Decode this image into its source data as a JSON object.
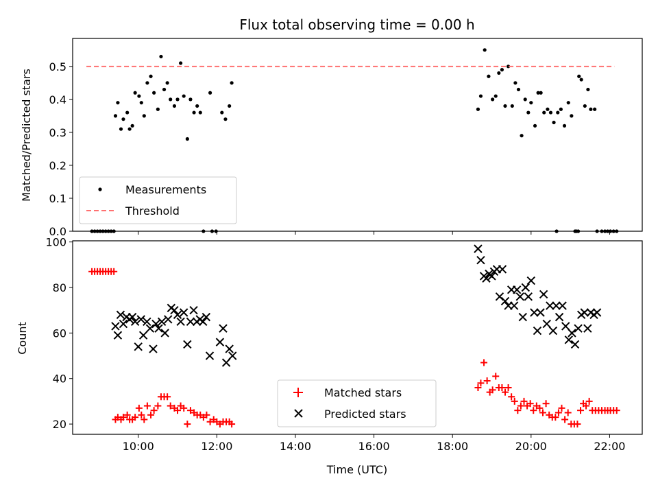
{
  "chart_data": [
    {
      "type": "scatter",
      "title": "Flux total observing time = 0.00 h",
      "ylabel": "Matched/Predicted stars",
      "xlabel": "",
      "xlim": [
        8.33,
        22.83
      ],
      "ylim": [
        0,
        0.585
      ],
      "yticks": [
        0,
        0.1,
        0.2,
        0.3,
        0.4,
        0.5
      ],
      "ytick_labels": [
        "0.0",
        "0.1",
        "0.2",
        "0.3",
        "0.4",
        "0.5"
      ],
      "xticks": [
        10,
        12,
        14,
        16,
        18,
        20,
        22
      ],
      "show_xtick_labels": false,
      "legend": {
        "position": "lower-left",
        "entries": [
          "Measurements",
          "Threshold"
        ]
      },
      "series": [
        {
          "name": "Measurements",
          "marker": "dot",
          "color": "#000000",
          "x": [
            8.82,
            8.89,
            8.96,
            9.03,
            9.1,
            9.17,
            9.24,
            9.31,
            9.38,
            9.42,
            9.48,
            9.56,
            9.62,
            9.72,
            9.78,
            9.85,
            9.92,
            10.02,
            10.08,
            10.15,
            10.23,
            10.32,
            10.4,
            10.5,
            10.58,
            10.66,
            10.74,
            10.82,
            10.92,
            11.0,
            11.08,
            11.16,
            11.25,
            11.33,
            11.42,
            11.5,
            11.58,
            11.66,
            11.83,
            12.32,
            12.38,
            12.13,
            12.22,
            11.88,
            11.98,
            18.65,
            18.72,
            18.82,
            18.92,
            19.02,
            19.1,
            19.18,
            19.26,
            19.34,
            19.42,
            19.52,
            19.6,
            19.68,
            19.76,
            19.85,
            19.93,
            20.0,
            20.1,
            20.18,
            20.25,
            20.33,
            20.42,
            20.5,
            20.58,
            20.68,
            20.76,
            20.85,
            20.95,
            21.03,
            21.12,
            21.22,
            21.28,
            21.37,
            21.45,
            21.52,
            21.62,
            21.68,
            21.8,
            21.88,
            21.95,
            22.02,
            22.1,
            22.18,
            20.65,
            21.15,
            21.2
          ],
          "y": [
            0,
            0,
            0,
            0,
            0,
            0,
            0,
            0,
            0,
            0.35,
            0.39,
            0.31,
            0.34,
            0.36,
            0.31,
            0.32,
            0.42,
            0.41,
            0.39,
            0.35,
            0.45,
            0.47,
            0.42,
            0.37,
            0.53,
            0.43,
            0.45,
            0.4,
            0.38,
            0.4,
            0.51,
            0.41,
            0.28,
            0.4,
            0.36,
            0.38,
            0.36,
            0,
            0.42,
            0.38,
            0.45,
            0.36,
            0.34,
            0,
            0,
            0.37,
            0.41,
            0.55,
            0.47,
            0.4,
            0.41,
            0.48,
            0.49,
            0.38,
            0.5,
            0.38,
            0.45,
            0.43,
            0.29,
            0.4,
            0.36,
            0.39,
            0.32,
            0.42,
            0.42,
            0.36,
            0.37,
            0.36,
            0.33,
            0.36,
            0.37,
            0.32,
            0.39,
            0.35,
            0,
            0.47,
            0.46,
            0.38,
            0.43,
            0.37,
            0.37,
            0,
            0,
            0,
            0,
            0,
            0,
            0,
            0,
            0,
            0
          ]
        },
        {
          "name": "Threshold",
          "style": "dashed",
          "color": "#ff7070",
          "x": [
            8.68,
            22.12
          ],
          "y": [
            0.5,
            0.5
          ]
        }
      ]
    },
    {
      "type": "scatter",
      "title": "",
      "ylabel": "Count",
      "xlabel": "Time (UTC)",
      "xlim": [
        8.33,
        22.83
      ],
      "ylim": [
        15.5,
        100.5
      ],
      "yticks": [
        20,
        40,
        60,
        80,
        100
      ],
      "ytick_labels": [
        "20",
        "40",
        "60",
        "80",
        "100"
      ],
      "xticks": [
        10,
        12,
        14,
        16,
        18,
        20,
        22
      ],
      "xtick_labels": [
        "10:00",
        "12:00",
        "14:00",
        "16:00",
        "18:00",
        "20:00",
        "22:00"
      ],
      "show_xtick_labels": true,
      "legend": {
        "position": "lower-center",
        "entries": [
          "Matched stars",
          "Predicted stars"
        ]
      },
      "series": [
        {
          "name": "Matched stars",
          "marker": "plus",
          "color": "#ff0000",
          "x": [
            8.82,
            8.89,
            8.96,
            9.03,
            9.1,
            9.17,
            9.24,
            9.31,
            9.38,
            9.42,
            9.48,
            9.56,
            9.62,
            9.72,
            9.78,
            9.85,
            9.92,
            10.02,
            10.08,
            10.15,
            10.23,
            10.32,
            10.4,
            10.5,
            10.58,
            10.66,
            10.74,
            10.82,
            10.92,
            11.0,
            11.08,
            11.16,
            11.25,
            11.33,
            11.42,
            11.5,
            11.58,
            11.66,
            11.74,
            11.83,
            11.92,
            12.0,
            12.08,
            12.16,
            12.24,
            12.32,
            12.38,
            18.65,
            18.72,
            18.8,
            18.88,
            18.95,
            19.02,
            19.1,
            19.18,
            19.26,
            19.34,
            19.42,
            19.5,
            19.58,
            19.66,
            19.74,
            19.82,
            19.9,
            19.98,
            20.06,
            20.14,
            20.22,
            20.3,
            20.38,
            20.46,
            20.54,
            20.62,
            20.7,
            20.78,
            20.86,
            20.94,
            21.02,
            21.1,
            21.18,
            21.26,
            21.33,
            21.4,
            21.48,
            21.56,
            21.64,
            21.72,
            21.8,
            21.88,
            21.95,
            22.02,
            22.1,
            22.18
          ],
          "y": [
            87,
            87,
            87,
            87,
            87,
            87,
            87,
            87,
            87,
            22,
            23,
            22,
            23,
            24,
            22,
            22,
            23,
            27,
            24,
            22,
            28,
            24,
            26,
            28,
            32,
            32,
            32,
            28,
            27,
            26,
            28,
            27,
            20,
            26,
            25,
            24,
            24,
            23,
            24,
            21,
            22,
            21,
            20,
            21,
            21,
            21,
            20,
            36,
            38,
            47,
            39,
            34,
            35,
            41,
            36,
            36,
            34,
            36,
            32,
            30,
            26,
            28,
            30,
            28,
            29,
            26,
            28,
            27,
            25,
            29,
            24,
            23,
            23,
            25,
            27,
            22,
            25,
            20,
            20,
            20,
            26,
            29,
            28,
            30,
            26,
            26,
            26,
            26,
            26,
            26,
            26,
            26,
            26
          ]
        },
        {
          "name": "Predicted stars",
          "marker": "x",
          "color": "#000000",
          "x": [
            9.42,
            9.48,
            9.55,
            9.62,
            9.7,
            9.78,
            9.85,
            9.92,
            10.0,
            10.07,
            10.13,
            10.22,
            10.3,
            10.38,
            10.45,
            10.52,
            10.6,
            10.68,
            10.76,
            10.84,
            10.92,
            11.0,
            11.08,
            11.16,
            11.25,
            11.33,
            11.41,
            11.49,
            11.57,
            11.65,
            11.73,
            11.82,
            12.08,
            12.16,
            12.24,
            12.32,
            12.4,
            18.65,
            18.72,
            18.8,
            18.86,
            18.93,
            19.0,
            19.06,
            19.13,
            19.2,
            19.27,
            19.34,
            19.42,
            19.5,
            19.57,
            19.64,
            19.72,
            19.79,
            19.86,
            19.93,
            20.0,
            20.08,
            20.16,
            20.24,
            20.32,
            20.4,
            20.48,
            20.56,
            20.64,
            20.72,
            20.8,
            20.88,
            20.96,
            21.04,
            21.12,
            21.2,
            21.28,
            21.36,
            21.44,
            21.52,
            21.6,
            21.68
          ],
          "y": [
            63,
            59,
            68,
            64,
            67,
            66,
            67,
            65,
            54,
            66,
            59,
            65,
            62,
            53,
            64,
            62,
            65,
            60,
            66,
            71,
            70,
            68,
            65,
            69,
            55,
            65,
            70,
            65,
            66,
            65,
            67,
            50,
            56,
            62,
            47,
            53,
            50,
            97,
            92,
            85,
            84,
            86,
            85,
            87,
            88,
            76,
            88,
            74,
            72,
            79,
            72,
            79,
            76,
            67,
            80,
            76,
            83,
            69,
            61,
            69,
            77,
            64,
            72,
            61,
            72,
            67,
            72,
            63,
            57,
            60,
            55,
            62,
            68,
            69,
            62,
            69,
            68,
            69
          ]
        }
      ]
    }
  ]
}
